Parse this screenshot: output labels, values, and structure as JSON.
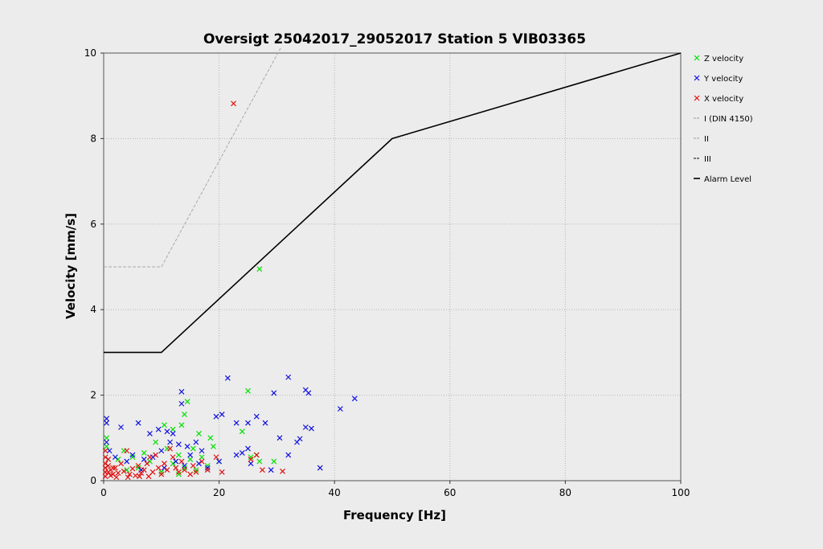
{
  "chart_data": {
    "type": "scatter",
    "title": "Oversigt 25042017_29052017 Station 5 VIB03365",
    "xlabel": "Frequency [Hz]",
    "ylabel": "Velocity [mm/s]",
    "xlim": [
      0,
      100
    ],
    "ylim": [
      0,
      10
    ],
    "xticks": [
      0,
      20,
      40,
      60,
      80,
      100
    ],
    "yticks": [
      0,
      2,
      4,
      6,
      8,
      10
    ],
    "grid": true,
    "legend_position": "right",
    "series": [
      {
        "name": "Z velocity",
        "kind": "scatter",
        "color": "#00e000",
        "points": [
          [
            27,
            4.95
          ],
          [
            25,
            2.1
          ],
          [
            14.5,
            1.85
          ],
          [
            14,
            1.55
          ],
          [
            13.5,
            1.3
          ],
          [
            12,
            1.2
          ],
          [
            16.5,
            1.1
          ],
          [
            18.5,
            1.0
          ],
          [
            19,
            0.8
          ],
          [
            24,
            1.15
          ],
          [
            25.5,
            0.55
          ],
          [
            26.5,
            0.6
          ],
          [
            27,
            0.45
          ],
          [
            29.5,
            0.45
          ],
          [
            10.5,
            1.3
          ],
          [
            9,
            0.9
          ],
          [
            11,
            0.75
          ],
          [
            13,
            0.6
          ],
          [
            15,
            0.5
          ],
          [
            7,
            0.65
          ],
          [
            5,
            0.55
          ],
          [
            3.5,
            0.7
          ],
          [
            2.5,
            0.5
          ],
          [
            0.5,
            1.0
          ],
          [
            0.5,
            0.8
          ],
          [
            8,
            0.45
          ],
          [
            12,
            0.4
          ],
          [
            14,
            0.3
          ],
          [
            16,
            0.25
          ],
          [
            18,
            0.35
          ],
          [
            20,
            0.45
          ],
          [
            6,
            0.3
          ],
          [
            4,
            0.25
          ],
          [
            10,
            0.2
          ],
          [
            13,
            0.15
          ],
          [
            15.5,
            0.75
          ],
          [
            17,
            0.55
          ]
        ]
      },
      {
        "name": "Y velocity",
        "kind": "scatter",
        "color": "#1010e0",
        "points": [
          [
            21.5,
            2.4
          ],
          [
            32,
            2.42
          ],
          [
            35,
            2.12
          ],
          [
            35.5,
            2.05
          ],
          [
            43.5,
            1.92
          ],
          [
            41,
            1.68
          ],
          [
            29.5,
            2.05
          ],
          [
            13.5,
            2.08
          ],
          [
            13.5,
            1.8
          ],
          [
            20.5,
            1.55
          ],
          [
            19.5,
            1.5
          ],
          [
            26.5,
            1.5
          ],
          [
            25,
            1.35
          ],
          [
            23,
            1.35
          ],
          [
            28,
            1.35
          ],
          [
            35,
            1.25
          ],
          [
            36,
            1.22
          ],
          [
            30.5,
            1.0
          ],
          [
            34,
            0.98
          ],
          [
            33.5,
            0.9
          ],
          [
            32,
            0.6
          ],
          [
            24,
            0.65
          ],
          [
            23,
            0.6
          ],
          [
            25,
            0.75
          ],
          [
            25.5,
            0.4
          ],
          [
            20,
            0.45
          ],
          [
            29,
            0.25
          ],
          [
            37.5,
            0.3
          ],
          [
            0.5,
            1.45
          ],
          [
            0.5,
            1.35
          ],
          [
            3,
            1.25
          ],
          [
            6,
            1.35
          ],
          [
            8,
            1.1
          ],
          [
            9.5,
            1.2
          ],
          [
            11,
            1.15
          ],
          [
            12,
            1.1
          ],
          [
            11.5,
            0.9
          ],
          [
            13,
            0.85
          ],
          [
            14.5,
            0.8
          ],
          [
            16,
            0.9
          ],
          [
            17,
            0.7
          ],
          [
            15,
            0.6
          ],
          [
            10,
            0.7
          ],
          [
            8.5,
            0.55
          ],
          [
            7,
            0.5
          ],
          [
            5,
            0.6
          ],
          [
            4,
            0.45
          ],
          [
            2,
            0.55
          ],
          [
            1,
            0.7
          ],
          [
            0.5,
            0.9
          ],
          [
            12.5,
            0.45
          ],
          [
            14,
            0.35
          ],
          [
            16.5,
            0.4
          ],
          [
            18,
            0.3
          ],
          [
            6.5,
            0.25
          ],
          [
            10.5,
            0.3
          ]
        ]
      },
      {
        "name": "X velocity",
        "kind": "scatter",
        "color": "#e01010",
        "points": [
          [
            22.5,
            8.82
          ],
          [
            26.5,
            0.6
          ],
          [
            25.5,
            0.5
          ],
          [
            31,
            0.22
          ],
          [
            27.5,
            0.25
          ],
          [
            20.5,
            0.2
          ],
          [
            19.5,
            0.55
          ],
          [
            17,
            0.45
          ],
          [
            11.5,
            0.75
          ],
          [
            12,
            0.55
          ],
          [
            9,
            0.6
          ],
          [
            8,
            0.55
          ],
          [
            7.5,
            0.4
          ],
          [
            6,
            0.35
          ],
          [
            4,
            0.7
          ],
          [
            3,
            0.4
          ],
          [
            2,
            0.3
          ],
          [
            0.3,
            0.7
          ],
          [
            0.3,
            0.55
          ],
          [
            0.3,
            0.4
          ],
          [
            0.3,
            0.3
          ],
          [
            0.3,
            0.2
          ],
          [
            0.3,
            0.1
          ],
          [
            0.8,
            0.5
          ],
          [
            0.8,
            0.35
          ],
          [
            0.8,
            0.2
          ],
          [
            1.2,
            0.25
          ],
          [
            1.2,
            0.12
          ],
          [
            1.6,
            0.3
          ],
          [
            1.6,
            0.15
          ],
          [
            2.5,
            0.18
          ],
          [
            3.5,
            0.22
          ],
          [
            4.5,
            0.15
          ],
          [
            5,
            0.28
          ],
          [
            5.5,
            0.12
          ],
          [
            6.5,
            0.18
          ],
          [
            7,
            0.25
          ],
          [
            8.5,
            0.2
          ],
          [
            9.5,
            0.3
          ],
          [
            10,
            0.15
          ],
          [
            10.5,
            0.4
          ],
          [
            11,
            0.25
          ],
          [
            12.5,
            0.3
          ],
          [
            13,
            0.2
          ],
          [
            14,
            0.25
          ],
          [
            15,
            0.15
          ],
          [
            16,
            0.2
          ],
          [
            18,
            0.25
          ],
          [
            13.5,
            0.45
          ],
          [
            15.5,
            0.35
          ],
          [
            7.8,
            0.1
          ],
          [
            6.2,
            0.1
          ],
          [
            4.2,
            0.08
          ],
          [
            2.2,
            0.08
          ]
        ]
      },
      {
        "name": "I (DIN 4150)",
        "kind": "line",
        "color": "#aaaaaa",
        "dash": "dashed",
        "points": [
          [
            0,
            5
          ],
          [
            10,
            5
          ],
          [
            31,
            10.2
          ]
        ]
      },
      {
        "name": "II",
        "kind": "line",
        "color": "#aaaaaa",
        "dash": "dashed",
        "points": []
      },
      {
        "name": "III",
        "kind": "line",
        "color": "#333333",
        "dash": "dashed",
        "points": []
      },
      {
        "name": "Alarm Level",
        "kind": "line",
        "color": "#000000",
        "dash": "solid",
        "points": [
          [
            0,
            3
          ],
          [
            10,
            3
          ],
          [
            50,
            8
          ],
          [
            100,
            10
          ]
        ]
      }
    ]
  }
}
